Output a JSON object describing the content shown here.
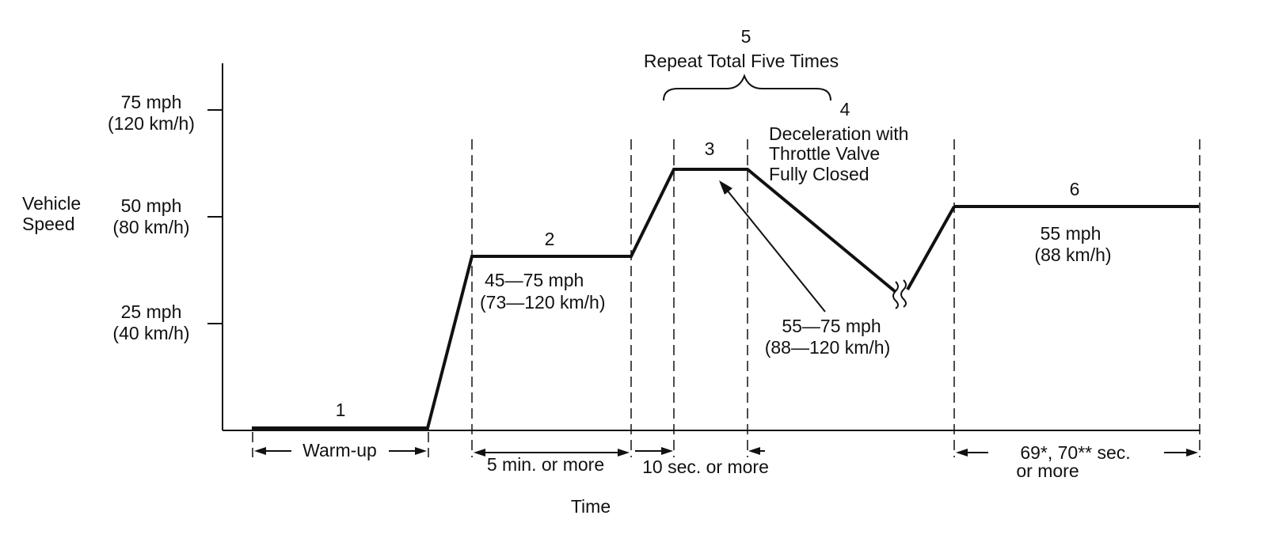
{
  "y_axis": {
    "label_line1": "Vehicle",
    "label_line2": "Speed",
    "ticks": [
      {
        "line1": "75 mph",
        "line2": "(120 km/h)"
      },
      {
        "line1": "50 mph",
        "line2": "(80 km/h)"
      },
      {
        "line1": "25 mph",
        "line2": "(40 km/h)"
      }
    ]
  },
  "x_axis": {
    "label": "Time"
  },
  "steps": {
    "s1": {
      "number": "1",
      "duration": "Warm-up"
    },
    "s2": {
      "number": "2",
      "speed_line1": "45—75 mph",
      "speed_line2": "(73—120 km/h)",
      "duration": "5 min. or more"
    },
    "s3": {
      "number": "3",
      "duration": "10 sec. or more"
    },
    "s4": {
      "number": "4",
      "line1": "Deceleration with",
      "line2": "Throttle Valve",
      "line3": "Fully Closed"
    },
    "s5": {
      "number": "5",
      "label": "Repeat Total Five Times"
    },
    "s6": {
      "number": "6",
      "speed_line1": "55 mph",
      "speed_line2": "(88 km/h)",
      "duration_line1": "69*, 70** sec.",
      "duration_line2": "or more"
    }
  },
  "callout": {
    "line1": "55—75 mph",
    "line2": "(88—120 km/h)"
  }
}
